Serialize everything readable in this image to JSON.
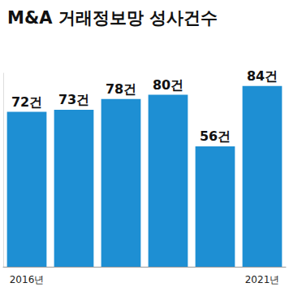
{
  "chart_data": {
    "type": "bar",
    "title": "M&A 거래정보망 성사건수",
    "categories": [
      "2016년",
      null,
      null,
      null,
      null,
      "2021년"
    ],
    "values": [
      72,
      73,
      78,
      80,
      56,
      84
    ],
    "value_labels": [
      "72건",
      "73건",
      "78건",
      "80건",
      "56건",
      "84건"
    ],
    "color": "#1e8fd3",
    "ylim": [
      0,
      90
    ],
    "grid": false,
    "data_labels": true,
    "tick_labels": "x"
  }
}
